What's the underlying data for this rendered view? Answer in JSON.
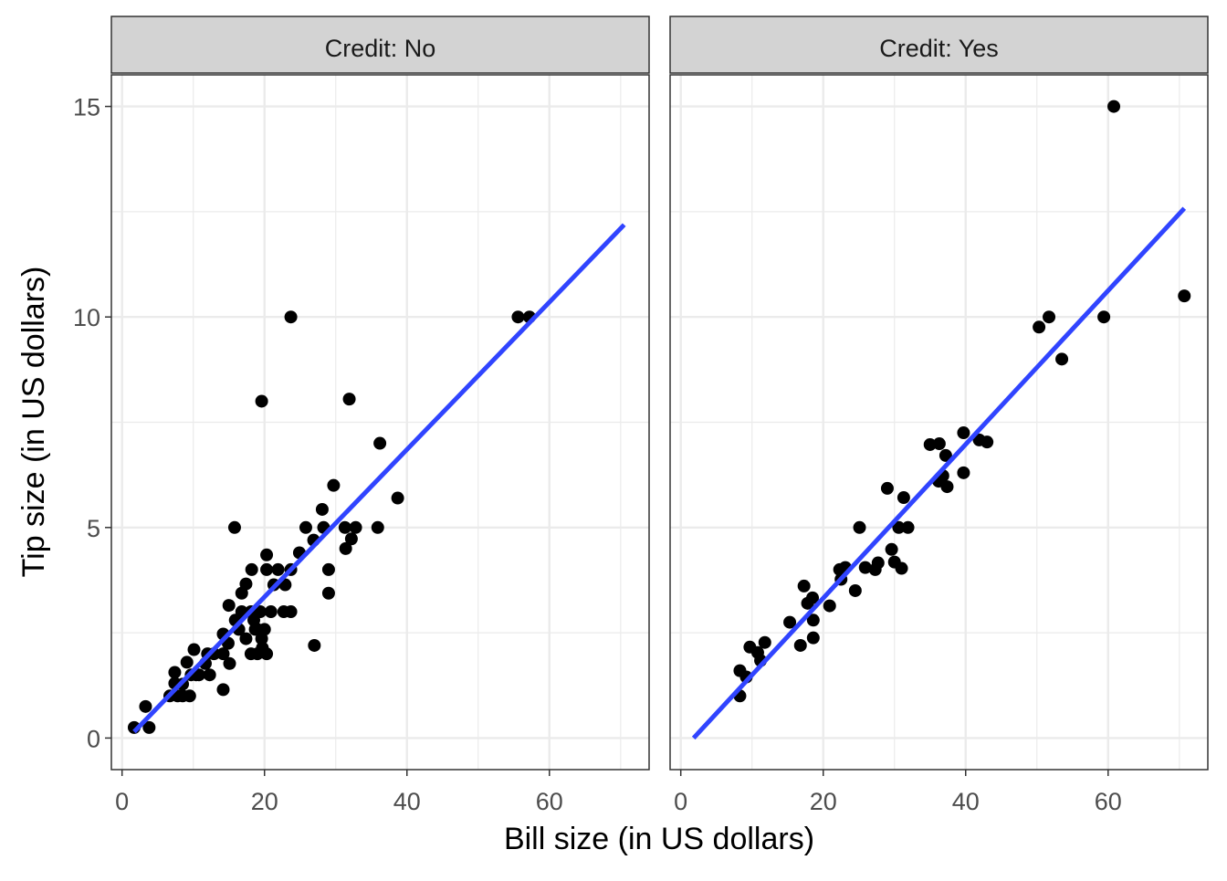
{
  "chart_data": {
    "type": "scatter",
    "xlabel": "Bill size (in US dollars)",
    "ylabel": "Tip size (in US dollars)",
    "xlim": [
      -1.5,
      74
    ],
    "ylim": [
      -0.75,
      15.75
    ],
    "x_ticks": [
      0,
      20,
      40,
      60
    ],
    "y_ticks": [
      0,
      5,
      10,
      15
    ],
    "grid": true,
    "colors": {
      "points": "#000000",
      "fit_line": "#3044FF",
      "strip": "#D3D3D3",
      "grid": "#EBEBEB"
    },
    "panels": [
      {
        "strip_label": "Credit: No",
        "fit_line": {
          "x": [
            1.7,
            70.5
          ],
          "y": [
            0.15,
            12.19
          ]
        },
        "points": [
          [
            1.7,
            0.25
          ],
          [
            3.3,
            0.75
          ],
          [
            3.8,
            0.25
          ],
          [
            7.4,
            1.56
          ],
          [
            6.7,
            1.0
          ],
          [
            7.8,
            1.0
          ],
          [
            8.5,
            1.0
          ],
          [
            9.5,
            1.0
          ],
          [
            7.4,
            1.3
          ],
          [
            9.1,
            1.8
          ],
          [
            10.1,
            2.1
          ],
          [
            10.8,
            1.5
          ],
          [
            12.3,
            1.5
          ],
          [
            12.0,
            2.0
          ],
          [
            14.2,
            1.15
          ],
          [
            14.2,
            2.0
          ],
          [
            15.1,
            1.77
          ],
          [
            15.0,
            3.15
          ],
          [
            15.8,
            5.0
          ],
          [
            17.4,
            3.66
          ],
          [
            18.2,
            4.0
          ],
          [
            19.6,
            8.0
          ],
          [
            20.3,
            4.35
          ],
          [
            20.3,
            4.0
          ],
          [
            20.3,
            2.0
          ],
          [
            20.9,
            3.0
          ],
          [
            21.3,
            3.64
          ],
          [
            21.9,
            4.0
          ],
          [
            22.7,
            3.0
          ],
          [
            22.9,
            3.64
          ],
          [
            23.7,
            10.0
          ],
          [
            23.7,
            3.0
          ],
          [
            23.7,
            4.0
          ],
          [
            24.9,
            4.4
          ],
          [
            25.8,
            5.0
          ],
          [
            27.0,
            2.2
          ],
          [
            26.9,
            4.7
          ],
          [
            28.1,
            5.43
          ],
          [
            28.3,
            5.0
          ],
          [
            29.0,
            4.0
          ],
          [
            29.0,
            3.44
          ],
          [
            29.7,
            6.0
          ],
          [
            31.3,
            5.0
          ],
          [
            31.4,
            4.5
          ],
          [
            31.9,
            8.05
          ],
          [
            32.2,
            4.73
          ],
          [
            32.8,
            5.0
          ],
          [
            35.9,
            5.0
          ],
          [
            36.2,
            7.0
          ],
          [
            38.7,
            5.7
          ],
          [
            55.6,
            10.0
          ],
          [
            57.2,
            10.0
          ],
          [
            16.8,
            3.0
          ],
          [
            18.1,
            3.0
          ],
          [
            19.4,
            3.0
          ],
          [
            17.4,
            2.36
          ],
          [
            18.1,
            2.0
          ],
          [
            19.0,
            2.0
          ],
          [
            19.6,
            2.36
          ],
          [
            19.0,
            2.58
          ],
          [
            16.4,
            2.58
          ],
          [
            15.9,
            2.8
          ],
          [
            20.0,
            2.58
          ],
          [
            19.7,
            2.14
          ],
          [
            18.5,
            2.8
          ],
          [
            14.9,
            2.25
          ],
          [
            12.9,
            2.0
          ],
          [
            11.7,
            1.77
          ],
          [
            10.4,
            1.5
          ],
          [
            8.5,
            1.28
          ],
          [
            9.7,
            1.5
          ],
          [
            14.2,
            2.47
          ],
          [
            16.8,
            3.44
          ],
          [
            18.7,
            2.58
          ]
        ]
      },
      {
        "strip_label": "Credit: Yes",
        "fit_line": {
          "x": [
            1.8,
            70.7
          ],
          "y": [
            0.0,
            12.58
          ]
        },
        "points": [
          [
            8.3,
            1.0
          ],
          [
            8.3,
            1.6
          ],
          [
            9.2,
            1.45
          ],
          [
            9.7,
            2.16
          ],
          [
            10.8,
            2.03
          ],
          [
            11.2,
            1.84
          ],
          [
            11.8,
            2.27
          ],
          [
            15.3,
            2.75
          ],
          [
            16.8,
            2.2
          ],
          [
            17.3,
            3.61
          ],
          [
            17.8,
            3.2
          ],
          [
            18.5,
            3.33
          ],
          [
            18.6,
            2.8
          ],
          [
            18.6,
            2.38
          ],
          [
            20.9,
            3.14
          ],
          [
            22.3,
            4.0
          ],
          [
            22.5,
            3.77
          ],
          [
            23.1,
            4.05
          ],
          [
            24.5,
            3.5
          ],
          [
            25.1,
            5.0
          ],
          [
            25.9,
            4.05
          ],
          [
            27.3,
            4.0
          ],
          [
            27.7,
            4.16
          ],
          [
            29.0,
            5.93
          ],
          [
            29.6,
            4.48
          ],
          [
            30.0,
            4.18
          ],
          [
            30.6,
            5.0
          ],
          [
            31.0,
            4.03
          ],
          [
            31.3,
            5.71
          ],
          [
            31.9,
            5.0
          ],
          [
            35.0,
            6.97
          ],
          [
            36.3,
            6.99
          ],
          [
            36.2,
            6.1
          ],
          [
            37.2,
            6.71
          ],
          [
            36.8,
            6.23
          ],
          [
            37.4,
            5.97
          ],
          [
            39.7,
            7.25
          ],
          [
            39.7,
            6.3
          ],
          [
            41.9,
            7.08
          ],
          [
            43.0,
            7.03
          ],
          [
            50.3,
            9.76
          ],
          [
            51.7,
            10.0
          ],
          [
            53.5,
            9.0
          ],
          [
            59.4,
            10.0
          ],
          [
            60.8,
            15.0
          ],
          [
            70.7,
            10.5
          ]
        ]
      }
    ]
  }
}
